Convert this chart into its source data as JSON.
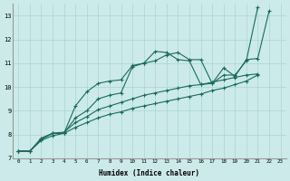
{
  "xlabel": "Humidex (Indice chaleur)",
  "bg_color": "#cceaea",
  "grid_color": "#aad4d4",
  "line_color": "#1a6b5a",
  "xlim": [
    -0.5,
    23.5
  ],
  "ylim": [
    7,
    13.5
  ],
  "yticks": [
    7,
    8,
    9,
    10,
    11,
    12,
    13
  ],
  "xticks": [
    0,
    1,
    2,
    3,
    4,
    5,
    6,
    7,
    8,
    9,
    10,
    11,
    12,
    13,
    14,
    15,
    16,
    17,
    18,
    19,
    20,
    21,
    22,
    23
  ],
  "series": [
    {
      "x": [
        0,
        1,
        2,
        3,
        4,
        5,
        6,
        7,
        8,
        9,
        10,
        11,
        12,
        13,
        14,
        15,
        16,
        17,
        18,
        19,
        20,
        21
      ],
      "y": [
        7.3,
        7.3,
        7.8,
        8.05,
        8.05,
        9.2,
        9.8,
        10.15,
        10.25,
        10.3,
        10.9,
        11.0,
        11.5,
        11.45,
        11.15,
        11.1,
        10.1,
        10.15,
        10.5,
        10.5,
        11.1,
        13.35
      ]
    },
    {
      "x": [
        0,
        1,
        2,
        3,
        4,
        5,
        6,
        7,
        8,
        9,
        10,
        11,
        12,
        13,
        14,
        15,
        16,
        17,
        18,
        19,
        20,
        21,
        22
      ],
      "y": [
        7.3,
        7.3,
        7.8,
        8.05,
        8.05,
        8.7,
        9.0,
        9.5,
        9.65,
        9.75,
        10.85,
        11.0,
        11.1,
        11.35,
        11.45,
        11.15,
        11.15,
        10.15,
        10.8,
        10.45,
        11.15,
        11.2,
        13.2
      ]
    },
    {
      "x": [
        0,
        1,
        2,
        3,
        4,
        5,
        6,
        7,
        8,
        9,
        10,
        11,
        12,
        13,
        14,
        15,
        16,
        17,
        18,
        19,
        20,
        21
      ],
      "y": [
        7.3,
        7.3,
        7.85,
        8.05,
        8.1,
        8.5,
        8.75,
        9.05,
        9.2,
        9.35,
        9.5,
        9.65,
        9.75,
        9.85,
        9.95,
        10.05,
        10.1,
        10.2,
        10.3,
        10.4,
        10.5,
        10.55
      ]
    },
    {
      "x": [
        0,
        1,
        2,
        3,
        4,
        5,
        6,
        7,
        8,
        9,
        10,
        11,
        12,
        13,
        14,
        15,
        16,
        17,
        18,
        19,
        20,
        21
      ],
      "y": [
        7.3,
        7.3,
        7.75,
        7.95,
        8.05,
        8.3,
        8.5,
        8.7,
        8.85,
        8.95,
        9.1,
        9.2,
        9.3,
        9.4,
        9.5,
        9.6,
        9.7,
        9.85,
        9.95,
        10.1,
        10.25,
        10.5
      ]
    }
  ]
}
